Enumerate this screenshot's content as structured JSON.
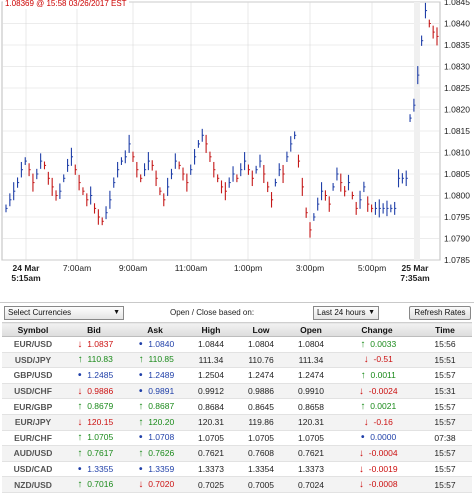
{
  "chart": {
    "caption": "1.08369 @ 15:58  03/26/2017 EST",
    "y_ticks": [
      "1.0845",
      "1.0840",
      "1.0835",
      "1.0830",
      "1.0825",
      "1.0820",
      "1.0815",
      "1.0810",
      "1.0805",
      "1.0800",
      "1.0795",
      "1.0790",
      "1.0785"
    ],
    "x_ticks": [
      {
        "line1": "24 Mar",
        "line2": "5:15am",
        "bold": true
      },
      {
        "line1": "7:00am",
        "line2": "",
        "bold": false
      },
      {
        "line1": "9:00am",
        "line2": "",
        "bold": false
      },
      {
        "line1": "11:00am",
        "line2": "",
        "bold": false
      },
      {
        "line1": "1:00pm",
        "line2": "",
        "bold": false
      },
      {
        "line1": "3:00pm",
        "line2": "",
        "bold": false
      },
      {
        "line1": "5:00pm",
        "line2": "",
        "bold": false
      },
      {
        "line1": "25 Mar",
        "line2": "7:35am",
        "bold": true
      }
    ],
    "colors": {
      "up": "#1f3fa8",
      "down": "#c41818",
      "grid": "#d9d9d9"
    }
  },
  "chart_data": {
    "type": "line",
    "ylim": [
      1.0785,
      1.0845
    ],
    "series": [
      {
        "values": [
          1.0797,
          1.0799,
          1.0801,
          1.0803,
          1.0806,
          1.0808,
          1.0806,
          1.0803,
          1.0805,
          1.0808,
          1.0807,
          1.0804,
          1.0802,
          1.08,
          1.0801,
          1.0804,
          1.0807,
          1.0809,
          1.0806,
          1.0803,
          1.0801,
          1.0799,
          1.08,
          1.0797,
          1.0795,
          1.0794,
          1.0796,
          1.0799,
          1.0803,
          1.0806,
          1.0808,
          1.0809,
          1.0812,
          1.0809,
          1.0806,
          1.0804,
          1.0806,
          1.0808,
          1.0807,
          1.0804,
          1.0801,
          1.0799,
          1.0802,
          1.0805,
          1.0808,
          1.0807,
          1.0805,
          1.0803,
          1.0806,
          1.0809,
          1.0812,
          1.0814,
          1.0812,
          1.0809,
          1.0806,
          1.0804,
          1.0802,
          1.0801,
          1.0803,
          1.0805,
          1.0804,
          1.0806,
          1.0808,
          1.0806,
          1.0804,
          1.0806,
          1.0808,
          1.0805,
          1.0802,
          1.0799,
          1.0803,
          1.0806,
          1.0805,
          1.0809,
          1.0812,
          1.0814,
          1.0808,
          1.0802,
          1.0796,
          1.0792,
          1.0795,
          1.0798,
          1.0801,
          1.08,
          1.0798,
          1.0802,
          1.0805,
          1.0803,
          1.0801,
          1.0803,
          1.08,
          1.0797,
          1.0799,
          1.0802,
          1.0798,
          1.0797,
          1.0797,
          1.0797,
          1.0797,
          1.0797,
          1.0797,
          1.0797,
          1.0804,
          1.0804,
          1.0804,
          1.0818,
          1.0821,
          1.0828,
          1.0836,
          1.0843,
          1.084,
          1.0838,
          1.0837
        ]
      }
    ]
  },
  "controls": {
    "select_currencies": "Select Currencies",
    "open_close_label": "Open / Close based on:",
    "period": "Last 24 hours",
    "refresh": "Refresh Rates"
  },
  "table": {
    "headers": [
      "Symbol",
      "Bid",
      "Ask",
      "High",
      "Low",
      "Open",
      "Change",
      "Time"
    ],
    "rows": [
      {
        "symbol": "EUR/USD",
        "bid": "1.0837",
        "bid_dir": "down",
        "ask": "1.0840",
        "ask_dir": "flat",
        "high": "1.0844",
        "low": "1.0804",
        "open": "1.0804",
        "change": "0.0033",
        "change_dir": "up",
        "time": "15:56"
      },
      {
        "symbol": "USD/JPY",
        "bid": "110.83",
        "bid_dir": "up",
        "ask": "110.85",
        "ask_dir": "up",
        "high": "111.34",
        "low": "110.76",
        "open": "111.34",
        "change": "-0.51",
        "change_dir": "down",
        "time": "15:51"
      },
      {
        "symbol": "GBP/USD",
        "bid": "1.2485",
        "bid_dir": "flat",
        "ask": "1.2489",
        "ask_dir": "flat",
        "high": "1.2504",
        "low": "1.2474",
        "open": "1.2474",
        "change": "0.0011",
        "change_dir": "up",
        "time": "15:57"
      },
      {
        "symbol": "USD/CHF",
        "bid": "0.9886",
        "bid_dir": "down",
        "ask": "0.9891",
        "ask_dir": "flat",
        "high": "0.9912",
        "low": "0.9886",
        "open": "0.9910",
        "change": "-0.0024",
        "change_dir": "down",
        "time": "15:31"
      },
      {
        "symbol": "EUR/GBP",
        "bid": "0.8679",
        "bid_dir": "up",
        "ask": "0.8687",
        "ask_dir": "up",
        "high": "0.8684",
        "low": "0.8645",
        "open": "0.8658",
        "change": "0.0021",
        "change_dir": "up",
        "time": "15:57"
      },
      {
        "symbol": "EUR/JPY",
        "bid": "120.15",
        "bid_dir": "down",
        "ask": "120.20",
        "ask_dir": "up",
        "high": "120.31",
        "low": "119.86",
        "open": "120.31",
        "change": "-0.16",
        "change_dir": "down",
        "time": "15:57"
      },
      {
        "symbol": "EUR/CHF",
        "bid": "1.0705",
        "bid_dir": "up",
        "ask": "1.0708",
        "ask_dir": "flat",
        "high": "1.0705",
        "low": "1.0705",
        "open": "1.0705",
        "change": "0.0000",
        "change_dir": "flat",
        "time": "07:38"
      },
      {
        "symbol": "AUD/USD",
        "bid": "0.7617",
        "bid_dir": "up",
        "ask": "0.7626",
        "ask_dir": "up",
        "high": "0.7621",
        "low": "0.7608",
        "open": "0.7621",
        "change": "-0.0004",
        "change_dir": "down",
        "time": "15:57"
      },
      {
        "symbol": "USD/CAD",
        "bid": "1.3355",
        "bid_dir": "flat",
        "ask": "1.3359",
        "ask_dir": "flat",
        "high": "1.3373",
        "low": "1.3354",
        "open": "1.3373",
        "change": "-0.0019",
        "change_dir": "down",
        "time": "15:57"
      },
      {
        "symbol": "NZD/USD",
        "bid": "0.7016",
        "bid_dir": "up",
        "ask": "0.7020",
        "ask_dir": "down",
        "high": "0.7025",
        "low": "0.7005",
        "open": "0.7024",
        "change": "-0.0008",
        "change_dir": "down",
        "time": "15:57"
      }
    ]
  }
}
